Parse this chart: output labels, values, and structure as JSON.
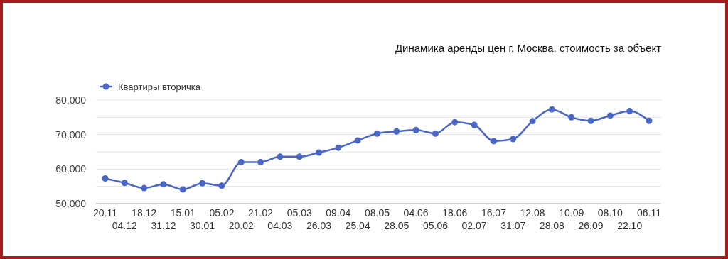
{
  "chart_data": {
    "type": "line",
    "title": "Динамика аренды цен г. Москва, стоимость за объект",
    "categories": [
      "20.11",
      "04.12",
      "18.12",
      "31.12",
      "15.01",
      "30.01",
      "05.02",
      "20.02",
      "21.02",
      "04.03",
      "05.03",
      "26.03",
      "09.04",
      "25.04",
      "08.05",
      "28.05",
      "04.06",
      "05.06",
      "18.06",
      "02.07",
      "16.07",
      "31.07",
      "12.08",
      "28.08",
      "10.09",
      "26.09",
      "08.10",
      "22.10",
      "06.11"
    ],
    "series": [
      {
        "name": "Квартиры вторичка",
        "color": "#4a67c6",
        "values": [
          57300,
          56000,
          54500,
          55600,
          54100,
          55900,
          55200,
          62000,
          62000,
          63600,
          63600,
          64800,
          66200,
          68300,
          70300,
          70900,
          71300,
          70300,
          73600,
          72800,
          68100,
          68700,
          73900,
          77300,
          75000,
          74000,
          75500,
          76800,
          74000
        ]
      }
    ],
    "ylim": [
      50000,
      80000
    ],
    "yticks": [
      {
        "value": 50000,
        "label": "50,000"
      },
      {
        "value": 55000,
        "label": null
      },
      {
        "value": 60000,
        "label": "60,000"
      },
      {
        "value": 65000,
        "label": null
      },
      {
        "value": 70000,
        "label": "70,000"
      },
      {
        "value": 75000,
        "label": null
      },
      {
        "value": 80000,
        "label": "80,000"
      }
    ],
    "grid": "y",
    "legend": "top left",
    "marker": "circle",
    "line_style": "solid"
  }
}
